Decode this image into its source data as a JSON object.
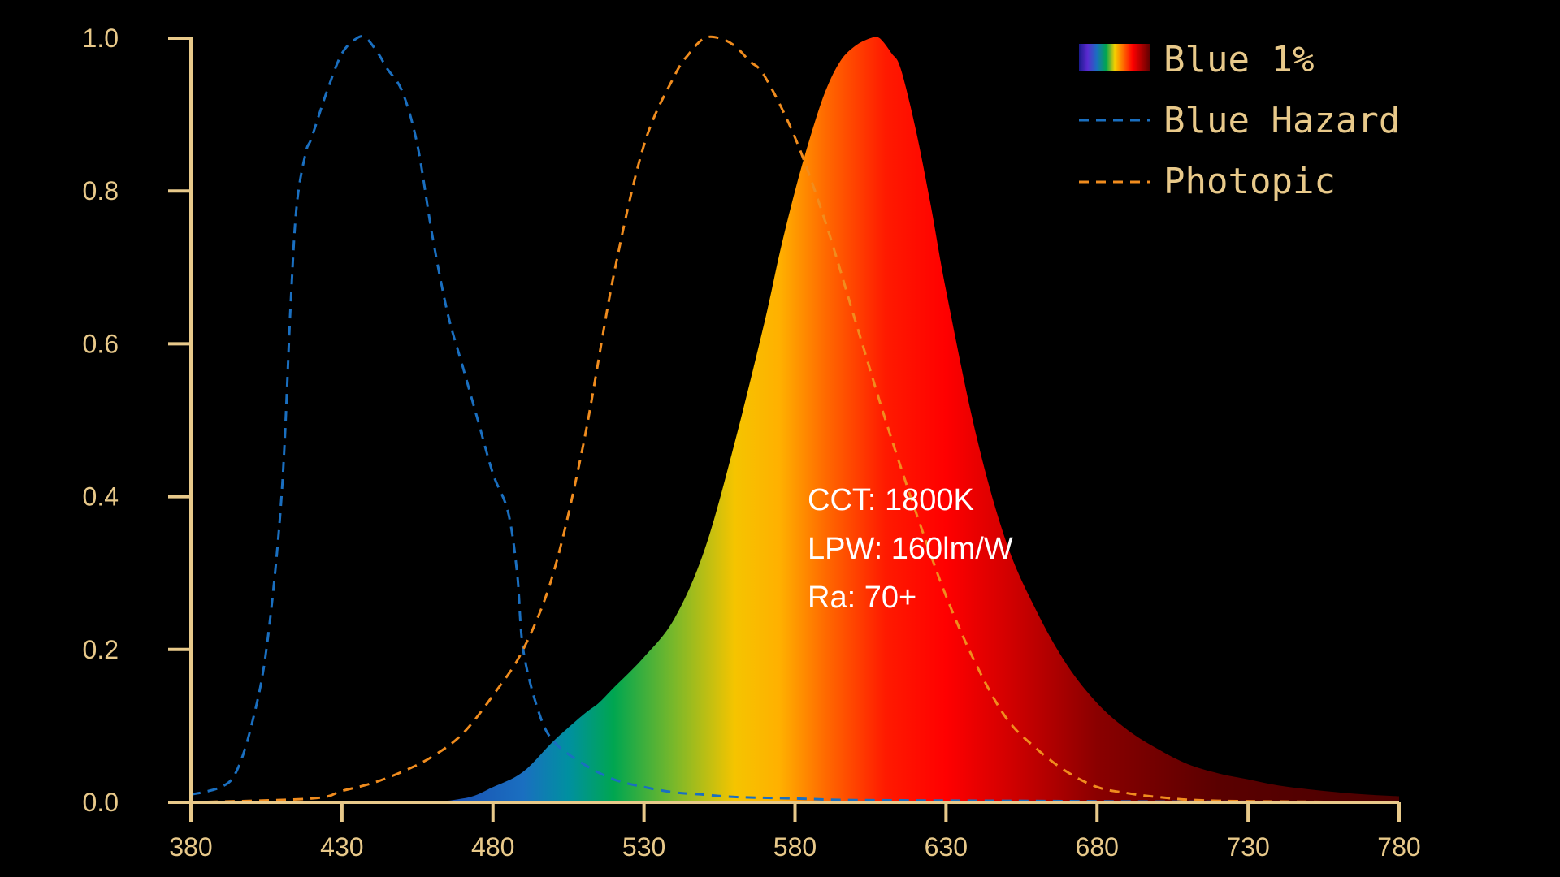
{
  "chart_data": {
    "type": "area",
    "xlim": [
      380,
      780
    ],
    "ylim": [
      0,
      1.0
    ],
    "x_ticks": [
      "380",
      "430",
      "480",
      "530",
      "580",
      "630",
      "680",
      "730",
      "780"
    ],
    "y_ticks": [
      "0.0",
      "0.2",
      "0.4",
      "0.6",
      "0.8",
      "1.0"
    ],
    "grid": false,
    "legend_position": "top-right",
    "series": [
      {
        "name": "Blue 1%",
        "style": "spectrum-fill",
        "x": [
          380,
          450,
          470,
          480,
          490,
          500,
          510,
          515,
          520,
          530,
          540,
          550,
          560,
          570,
          575,
          580,
          585,
          590,
          595,
          600,
          605,
          608,
          612,
          615,
          620,
          625,
          630,
          640,
          650,
          660,
          670,
          680,
          690,
          700,
          710,
          720,
          730,
          740,
          750,
          760,
          770,
          780
        ],
        "y": [
          0,
          0,
          0.005,
          0.02,
          0.04,
          0.08,
          0.115,
          0.13,
          0.15,
          0.19,
          0.24,
          0.33,
          0.47,
          0.63,
          0.72,
          0.8,
          0.87,
          0.93,
          0.97,
          0.99,
          1.0,
          1.0,
          0.98,
          0.96,
          0.88,
          0.78,
          0.67,
          0.48,
          0.34,
          0.25,
          0.18,
          0.13,
          0.095,
          0.07,
          0.05,
          0.038,
          0.03,
          0.022,
          0.017,
          0.013,
          0.01,
          0.008
        ]
      },
      {
        "name": "Blue Hazard",
        "color": "#1a6fc0",
        "style": "dashed",
        "x": [
          380,
          390,
          395,
          400,
          405,
          410,
          413,
          415,
          418,
          420,
          425,
          430,
          435,
          438,
          442,
          445,
          450,
          455,
          460,
          465,
          470,
          475,
          480,
          485,
          488,
          490,
          495,
          500,
          510,
          520,
          530,
          540,
          550,
          560,
          580,
          600,
          650,
          700,
          780
        ],
        "y": [
          0.01,
          0.02,
          0.04,
          0.1,
          0.2,
          0.4,
          0.65,
          0.78,
          0.85,
          0.87,
          0.93,
          0.98,
          1.0,
          1.0,
          0.98,
          0.96,
          0.93,
          0.86,
          0.74,
          0.64,
          0.57,
          0.5,
          0.43,
          0.38,
          0.3,
          0.2,
          0.12,
          0.08,
          0.05,
          0.03,
          0.02,
          0.013,
          0.01,
          0.007,
          0.005,
          0.003,
          0.002,
          0.001,
          0.0
        ]
      },
      {
        "name": "Photopic",
        "color": "#f08c1e",
        "style": "dashed",
        "x": [
          380,
          420,
          430,
          440,
          450,
          460,
          470,
          480,
          490,
          500,
          510,
          520,
          530,
          540,
          545,
          550,
          555,
          560,
          565,
          570,
          580,
          590,
          600,
          610,
          620,
          630,
          640,
          650,
          660,
          670,
          680,
          690,
          700,
          720,
          780
        ],
        "y": [
          0,
          0.005,
          0.015,
          0.025,
          0.04,
          0.06,
          0.09,
          0.14,
          0.2,
          0.3,
          0.47,
          0.69,
          0.86,
          0.95,
          0.98,
          1.0,
          1.0,
          0.99,
          0.97,
          0.95,
          0.87,
          0.76,
          0.63,
          0.5,
          0.38,
          0.27,
          0.18,
          0.11,
          0.07,
          0.04,
          0.02,
          0.012,
          0.007,
          0.002,
          0.0
        ]
      }
    ]
  },
  "annotations": [
    "CCT: 1800K",
    "LPW: 160lm/W",
    "Ra: 70+"
  ]
}
